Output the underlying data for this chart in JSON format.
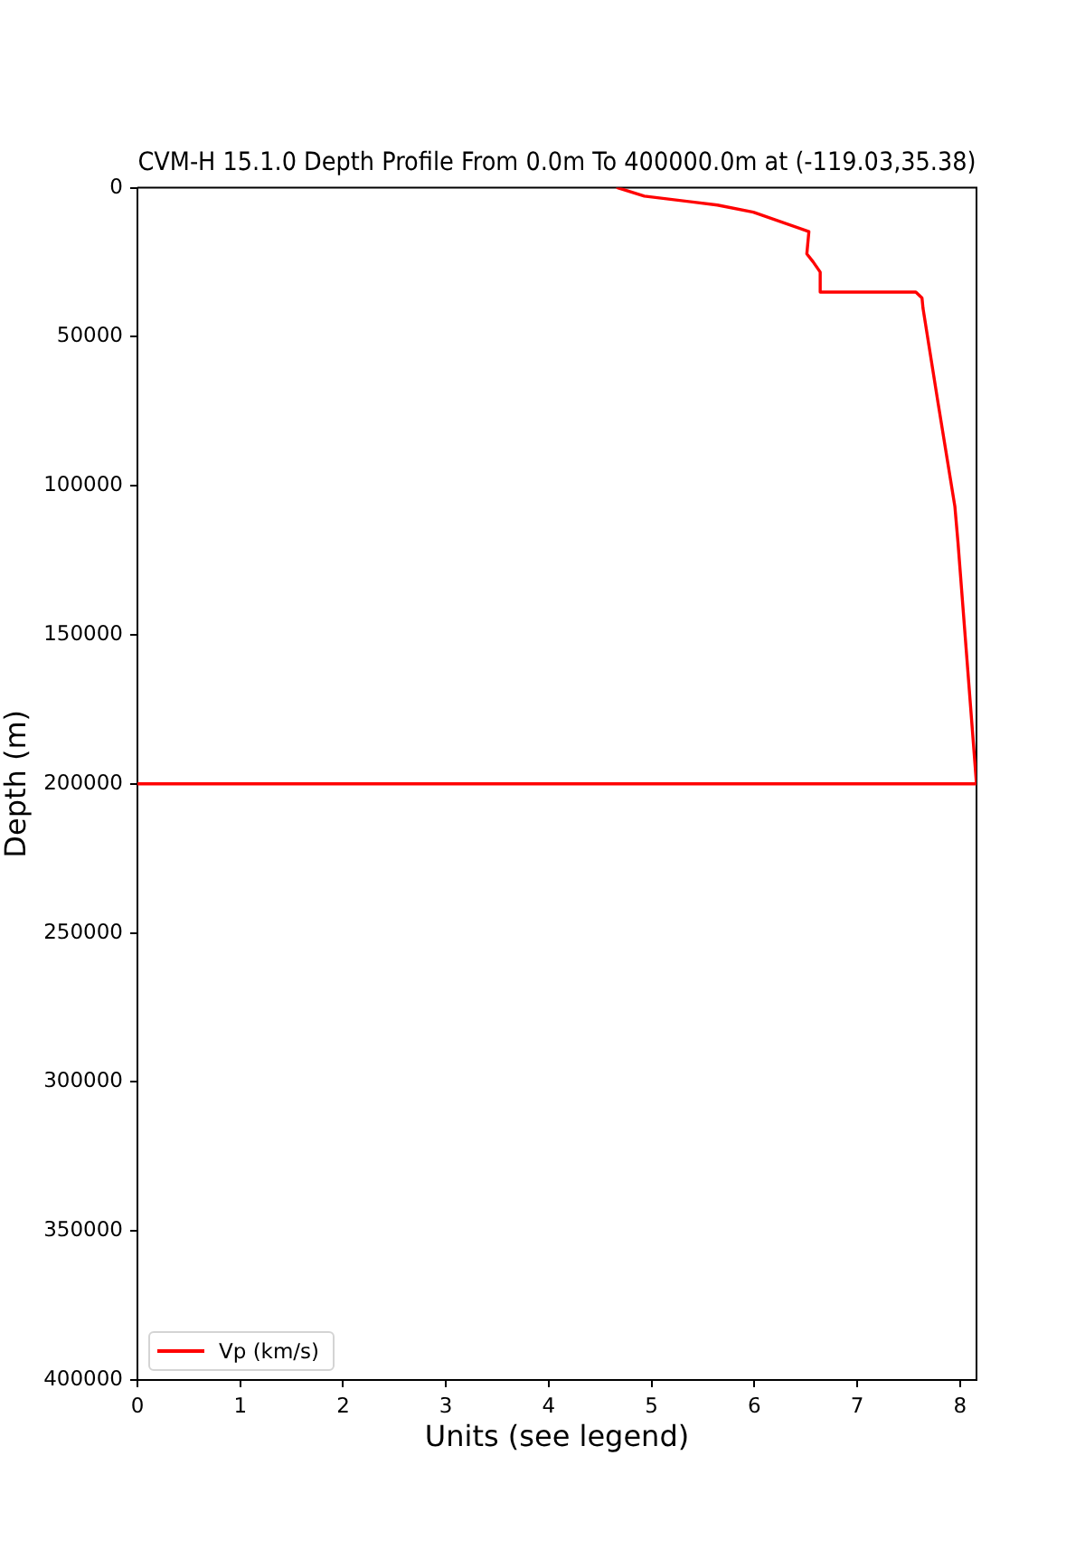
{
  "chart_data": {
    "type": "line",
    "title": "CVM-H 15.1.0 Depth Profile From 0.0m To 400000.0m at (-119.03,35.38)",
    "xlabel": "Units (see legend)",
    "ylabel": "Depth (m)",
    "x": [
      4.67,
      4.93,
      5.64,
      5.99,
      6.53,
      6.51,
      6.57,
      6.64,
      6.64,
      7.57,
      7.63,
      7.64,
      7.79,
      7.95,
      7.98,
      8.16,
      0
    ],
    "series": [
      {
        "name": "Vp (km/s)",
        "color": "#ff0000",
        "values": [
          0,
          2800,
          5800,
          8200,
          14700,
          22200,
          24800,
          28300,
          35000,
          35000,
          37000,
          40500,
          73000,
          107000,
          119000,
          200000,
          200000
        ]
      }
    ],
    "xlim": [
      0,
      8.16
    ],
    "xticks": [
      0,
      1,
      2,
      3,
      4,
      5,
      6,
      7,
      8
    ],
    "ylim": [
      400000,
      0
    ],
    "yticks": [
      0,
      50000,
      100000,
      150000,
      200000,
      250000,
      300000,
      350000,
      400000
    ],
    "legend": "bottom left"
  }
}
